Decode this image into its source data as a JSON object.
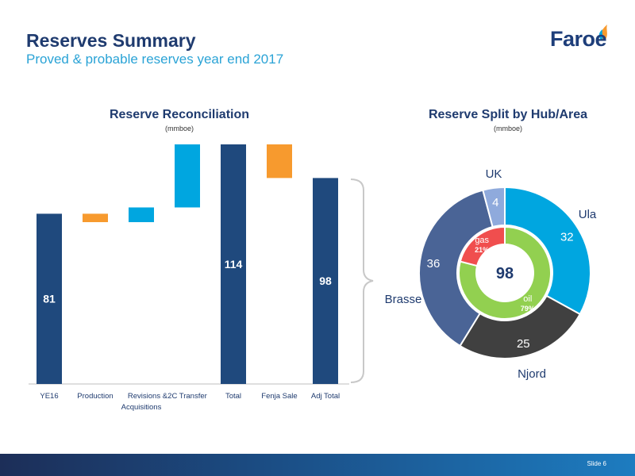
{
  "header": {
    "title": "Reserves Summary",
    "subtitle": "Proved & probable reserves year end 2017",
    "logo_text": "Faroe"
  },
  "footer": {
    "slide_label": "Slide 6"
  },
  "colors": {
    "bar_total": "#1f497d",
    "bar_decrease": "#f79a2e",
    "bar_increase": "#00a6e0",
    "ula": "#00a6e0",
    "njord": "#404040",
    "brasse": "#4a6496",
    "uk": "#8faadc",
    "oil": "#92d050",
    "gas": "#f04e4e"
  },
  "chart_data": [
    {
      "type": "bar",
      "subtype": "waterfall",
      "title": "Reserve Reconciliation",
      "unit": "(mmboe)",
      "categories": [
        "YE16",
        "Production",
        "Revisions & Acquisitions",
        "2C Transfer",
        "Total",
        "Fenja Sale",
        "Adj Total"
      ],
      "bars": [
        {
          "category": "YE16",
          "kind": "total",
          "start": 0,
          "end": 81,
          "label": "81"
        },
        {
          "category": "Production",
          "kind": "decrease",
          "start": 81,
          "end": 77,
          "label": ""
        },
        {
          "category": "Revisions & Acquisitions",
          "kind": "increase",
          "start": 77,
          "end": 84,
          "label": ""
        },
        {
          "category": "2C Transfer",
          "kind": "increase",
          "start": 84,
          "end": 114,
          "label": ""
        },
        {
          "category": "Total",
          "kind": "total",
          "start": 0,
          "end": 114,
          "label": "114"
        },
        {
          "category": "Fenja Sale",
          "kind": "decrease",
          "start": 114,
          "end": 98,
          "label": ""
        },
        {
          "category": "Adj Total",
          "kind": "total",
          "start": 0,
          "end": 98,
          "label": "98"
        }
      ],
      "ylim": [
        0,
        114
      ],
      "grid": false
    },
    {
      "type": "pie",
      "subtype": "donut",
      "title": "Reserve Split by Hub/Area",
      "unit": "(mmboe)",
      "center_label": "98",
      "outer": [
        {
          "name": "Ula",
          "value": 32,
          "label": "32"
        },
        {
          "name": "Njord",
          "value": 25,
          "label": "25"
        },
        {
          "name": "Brasse",
          "value": 36,
          "label": "36"
        },
        {
          "name": "UK",
          "value": 4,
          "label": "4"
        }
      ],
      "inner": [
        {
          "name": "oil",
          "value": 79,
          "label": "79%"
        },
        {
          "name": "gas",
          "value": 21,
          "label": "21%"
        }
      ]
    }
  ]
}
